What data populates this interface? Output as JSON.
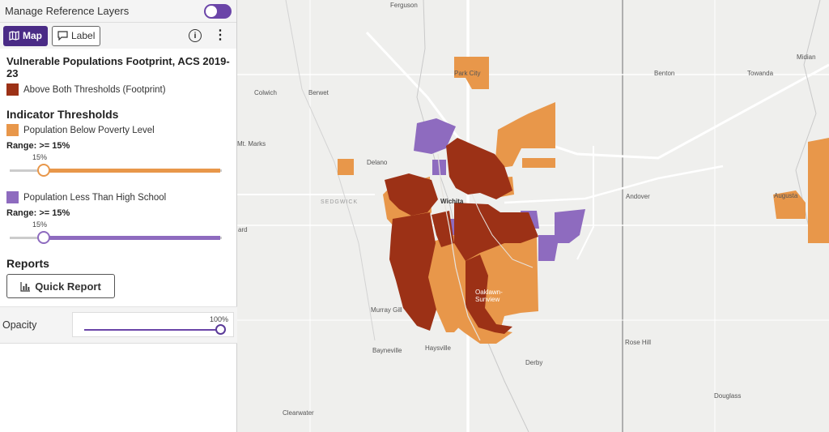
{
  "panel": {
    "ref_layers_title": "Manage Reference Layers",
    "map_button": "Map",
    "label_button": "Label",
    "info_icon": "i",
    "menu_icon": "⋮",
    "footprint_title": "Vulnerable Populations Footprint, ACS 2019-23",
    "footprint_legend": "Above Both Thresholds (Footprint)",
    "indicator_heading": "Indicator Thresholds",
    "indicator1": {
      "label": "Population Below Poverty Level",
      "range": "Range: >= 15%",
      "value": "15%",
      "color": "#e8974a"
    },
    "indicator2": {
      "label": "Population Less Than High School",
      "range": "Range: >= 15%",
      "value": "15%",
      "color": "#8e6bbf"
    },
    "reports_heading": "Reports",
    "quick_report": "Quick Report",
    "opacity_label": "Opacity",
    "opacity_value": "100%",
    "collapse_icon": "‹"
  },
  "colors": {
    "footprint": "#9c3116",
    "poverty": "#e8974a",
    "education": "#8e6bbf",
    "accent": "#4a2b86"
  },
  "map": {
    "places": [
      "Ferguson",
      "Park City",
      "Benton",
      "Towanda",
      "Midian",
      "Colwich",
      "Berwet",
      "Mt. Marks",
      "Delano",
      "SEDGWICK",
      "Wichita",
      "Andover",
      "Augusta",
      "Oaklawn-Sunview",
      "Murray Gill",
      "Bayneville",
      "Haysville",
      "Derby",
      "Rose Hill",
      "Douglass",
      "Clearwater",
      "ard"
    ]
  }
}
